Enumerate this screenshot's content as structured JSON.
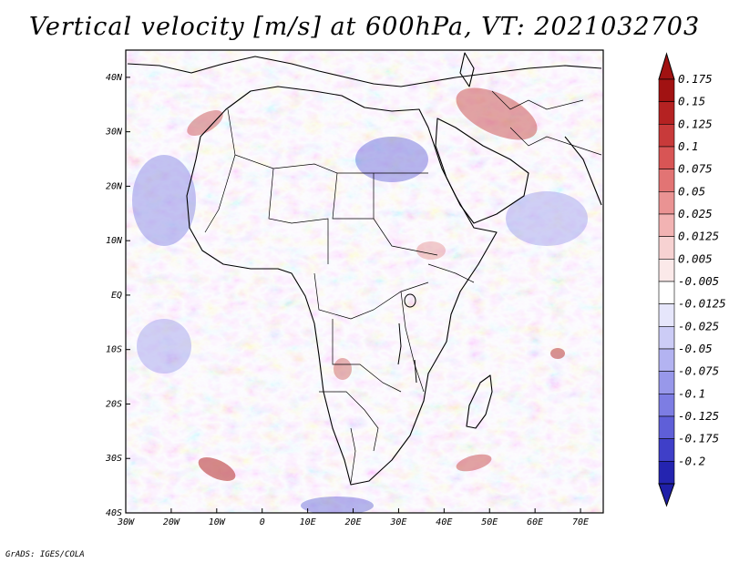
{
  "title": "Vertical velocity [m/s] at 600hPa, VT: 2021032703",
  "footer": "GrADS: IGES/COLA",
  "map": {
    "lon_range": [
      -30,
      75
    ],
    "lat_range": [
      -40,
      45
    ],
    "lon_ticks": [
      {
        "value": -30,
        "label": "30W"
      },
      {
        "value": -20,
        "label": "20W"
      },
      {
        "value": -10,
        "label": "10W"
      },
      {
        "value": 0,
        "label": "0"
      },
      {
        "value": 10,
        "label": "10E"
      },
      {
        "value": 20,
        "label": "20E"
      },
      {
        "value": 30,
        "label": "30E"
      },
      {
        "value": 40,
        "label": "40E"
      },
      {
        "value": 50,
        "label": "50E"
      },
      {
        "value": 60,
        "label": "60E"
      },
      {
        "value": 70,
        "label": "70E"
      }
    ],
    "lat_ticks": [
      {
        "value": 40,
        "label": "40N"
      },
      {
        "value": 30,
        "label": "30N"
      },
      {
        "value": 20,
        "label": "20N"
      },
      {
        "value": 10,
        "label": "10N"
      },
      {
        "value": 0,
        "label": "EQ"
      },
      {
        "value": -10,
        "label": "10S"
      },
      {
        "value": -20,
        "label": "20S"
      },
      {
        "value": -30,
        "label": "30S"
      },
      {
        "value": -40,
        "label": "40S"
      }
    ]
  },
  "colorbar": {
    "levels": [
      {
        "label": "0.175",
        "color": "#a11212"
      },
      {
        "label": "0.15",
        "color": "#b52222"
      },
      {
        "label": "0.125",
        "color": "#c83a3a"
      },
      {
        "label": "0.1",
        "color": "#d85555"
      },
      {
        "label": "0.075",
        "color": "#e27474"
      },
      {
        "label": "0.05",
        "color": "#ea9393"
      },
      {
        "label": "0.025",
        "color": "#f2b3b3"
      },
      {
        "label": "0.0125",
        "color": "#f7d2d2"
      },
      {
        "label": "0.005",
        "color": "#fbe9e9"
      },
      {
        "label": "-0.005",
        "color": "#ffffff"
      },
      {
        "label": "-0.0125",
        "color": "#e6e6fb"
      },
      {
        "label": "-0.025",
        "color": "#ccccf6"
      },
      {
        "label": "-0.05",
        "color": "#b3b3f1"
      },
      {
        "label": "-0.075",
        "color": "#9898ea"
      },
      {
        "label": "-0.1",
        "color": "#7d7de3"
      },
      {
        "label": "-0.125",
        "color": "#5f5fd8"
      },
      {
        "label": "-0.175",
        "color": "#3f3fc8"
      },
      {
        "label": "-0.2",
        "color": "#2424b0"
      }
    ],
    "top_arrow_color": "#a11212",
    "bottom_arrow_color": "#1f1fa8"
  }
}
